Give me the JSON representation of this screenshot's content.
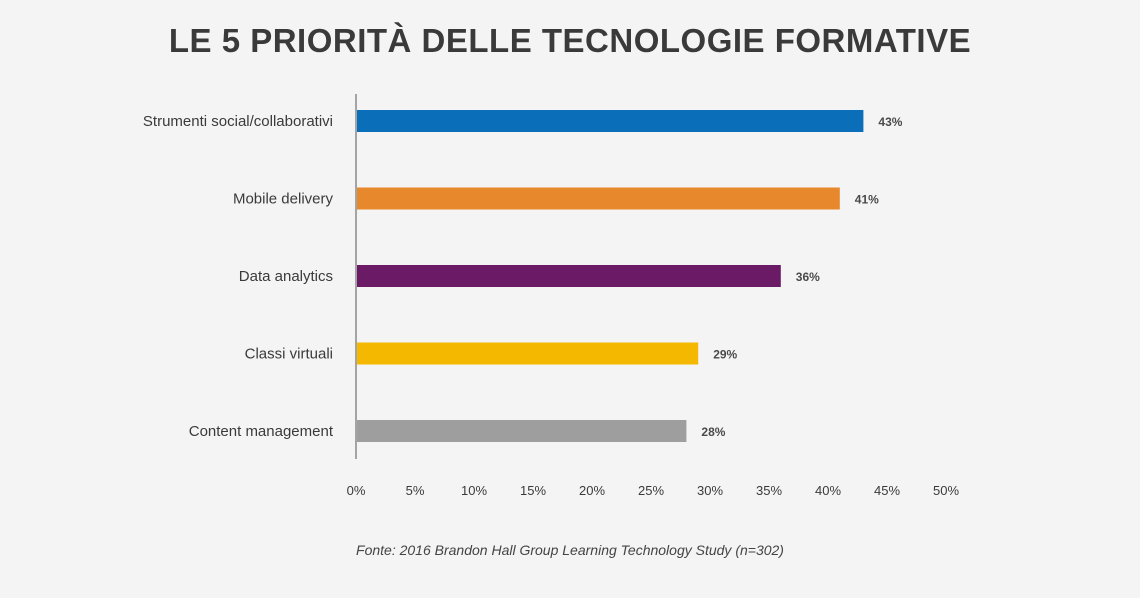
{
  "chart_data": {
    "type": "bar",
    "orientation": "horizontal",
    "title": "LE 5 PRIORITÀ DELLE TECNOLOGIE FORMATIVE",
    "categories": [
      "Strumenti social/collaborativi",
      "Mobile delivery",
      "Data analytics",
      "Classi virtuali",
      "Content management"
    ],
    "values": [
      43,
      41,
      36,
      29,
      28
    ],
    "value_labels": [
      "43%",
      "41%",
      "36%",
      "29%",
      "28%"
    ],
    "colors": [
      "#0a6fb8",
      "#e8882c",
      "#6b1a66",
      "#f5b800",
      "#9e9e9e"
    ],
    "xlim": [
      0,
      50
    ],
    "x_ticks": [
      "0%",
      "5%",
      "10%",
      "15%",
      "20%",
      "25%",
      "30%",
      "35%",
      "40%",
      "45%",
      "50%"
    ],
    "grid": false,
    "legend": "none",
    "source": "Fonte: 2016 Brandon Hall Group Learning Technology Study (n=302)"
  }
}
